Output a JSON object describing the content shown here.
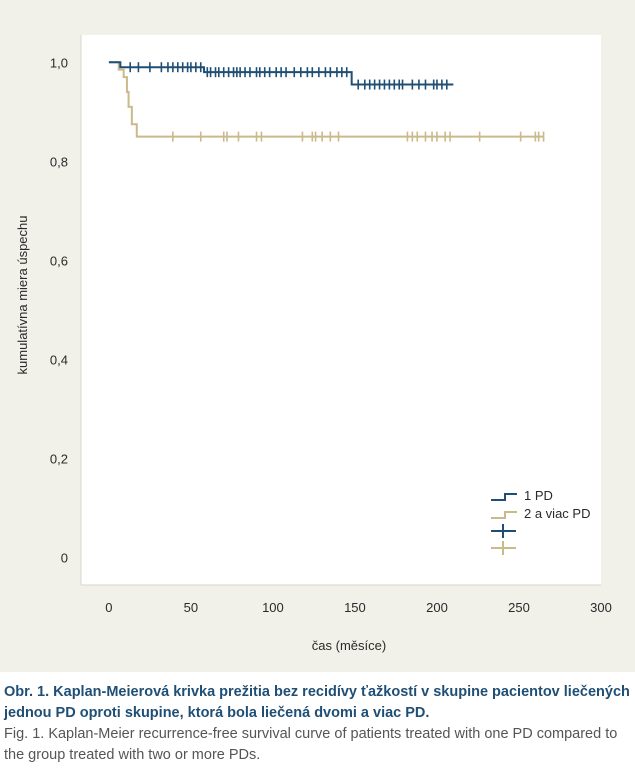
{
  "chart_data": {
    "type": "line",
    "subtype": "kaplan-meier",
    "title": "",
    "xlabel": "čas (měsíce)",
    "ylabel": "kumulatívna miera úspechu",
    "xlim": [
      -17,
      300
    ],
    "ylim": [
      -0.055,
      1.055
    ],
    "xticks": [
      0,
      50,
      100,
      150,
      200,
      250,
      300
    ],
    "yticks": [
      0,
      0.2,
      0.4,
      0.6,
      0.8,
      1.0
    ],
    "xtick_labels": [
      "0",
      "50",
      "100",
      "150",
      "200",
      "250",
      "300"
    ],
    "ytick_labels": [
      "0",
      "0,2",
      "0,4",
      "0,6",
      "0,8",
      "1,0"
    ],
    "grid": false,
    "legend_position": "bottom-right",
    "series": [
      {
        "name": "1 PD",
        "color": "#1f4f75",
        "steps": [
          [
            0,
            1.0
          ],
          [
            7,
            0.99
          ],
          [
            58,
            0.98
          ],
          [
            148,
            0.955
          ],
          [
            210,
            0.955
          ]
        ],
        "censored": [
          13,
          18,
          25,
          32,
          36,
          39,
          42,
          45,
          48,
          50,
          53,
          56,
          60,
          62,
          65,
          67,
          70,
          73,
          76,
          78,
          80,
          83,
          86,
          90,
          92,
          95,
          98,
          102,
          105,
          108,
          113,
          117,
          121,
          124,
          128,
          132,
          135,
          139,
          142,
          145,
          152,
          156,
          159,
          162,
          165,
          168,
          171,
          174,
          177,
          179,
          185,
          189,
          193,
          198,
          200,
          203,
          206
        ]
      },
      {
        "name": "2 a viac PD",
        "color": "#c9b98b",
        "steps": [
          [
            0,
            1.0
          ],
          [
            6,
            0.985
          ],
          [
            9,
            0.97
          ],
          [
            11,
            0.94
          ],
          [
            12,
            0.91
          ],
          [
            14,
            0.875
          ],
          [
            17,
            0.85
          ],
          [
            265,
            0.85
          ]
        ],
        "censored": [
          39,
          56,
          70,
          72,
          79,
          90,
          93,
          118,
          124,
          126,
          130,
          135,
          140,
          182,
          185,
          188,
          193,
          197,
          200,
          205,
          208,
          226,
          251,
          260,
          262,
          265
        ]
      }
    ]
  },
  "caption": {
    "slovak": "Obr. 1. Kaplan-Meierová krivka prežitia bez recidívy ťažkostí v skupine pacientov liečených jednou PD oproti skupine, ktorá bola liečená dvomi a viac PD.",
    "english": "Fig. 1. Kaplan-Meier recurrence-free survival curve of patients treated with one PD compared to the group treated with two or more PDs."
  }
}
